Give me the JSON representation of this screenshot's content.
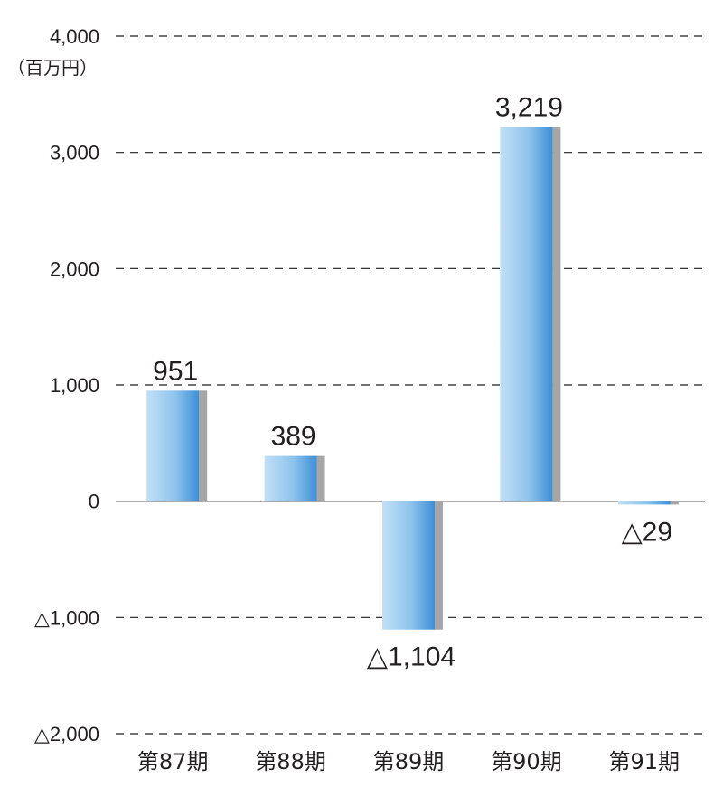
{
  "chart_data": {
    "type": "bar",
    "unit": "（百万円）",
    "categories": [
      "第87期",
      "第88期",
      "第89期",
      "第90期",
      "第91期"
    ],
    "values": [
      951,
      389,
      -1104,
      3219,
      -29
    ],
    "value_labels": [
      "951",
      "389",
      "△1,104",
      "3,219",
      "△29"
    ],
    "ylim": [
      -2000,
      4000
    ],
    "y_ticks": [
      4000,
      3000,
      2000,
      1000,
      0,
      -1000,
      -2000
    ],
    "y_tick_labels": [
      "4,000",
      "3,000",
      "2,000",
      "1,000",
      "0",
      "△1,000",
      "△2,000"
    ],
    "grid": true,
    "colors": {
      "bar_light": "#c2e0f6",
      "bar_dark": "#3d8fd6",
      "bar_shadow": "#a6a6a6",
      "grid": "#231f20"
    }
  }
}
